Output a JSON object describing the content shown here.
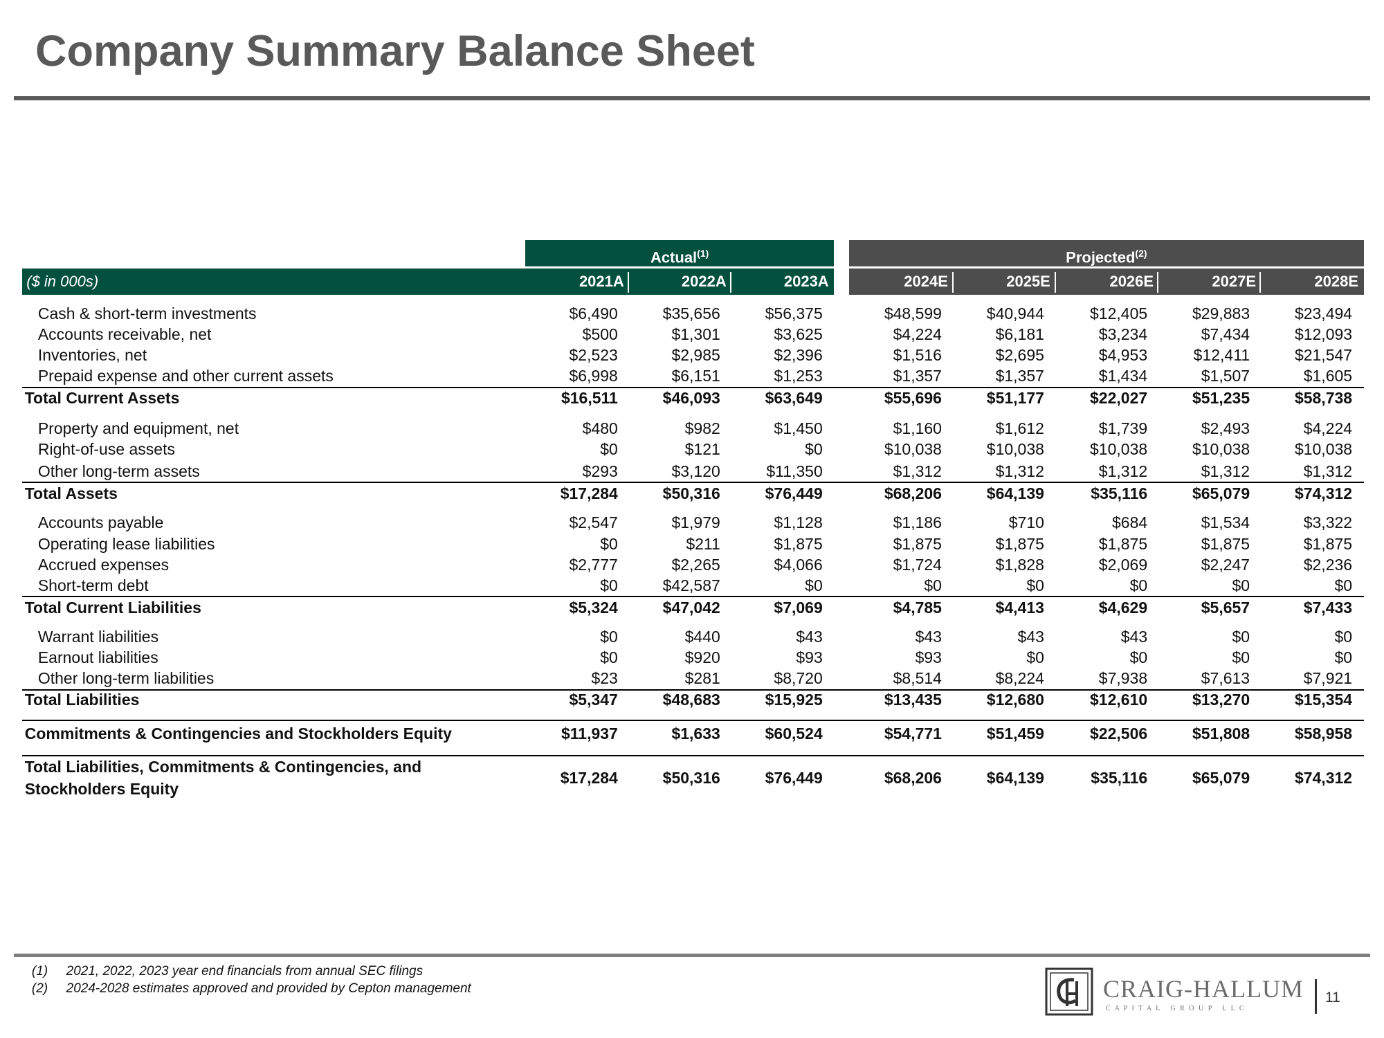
{
  "header": {
    "title": "Company Summary Balance Sheet"
  },
  "table": {
    "groups": [
      {
        "label": "Actual",
        "note": "(1)"
      },
      {
        "label": "Projected",
        "note": "(2)"
      }
    ],
    "unit_label": "($ in 000s)",
    "columns": [
      "2021A",
      "2022A",
      "2023A",
      "2024E",
      "2025E",
      "2026E",
      "2027E",
      "2028E"
    ],
    "rows": [
      {
        "label": "Cash & short-term investments",
        "values": [
          "$6,490",
          "$35,656",
          "$56,375",
          "$48,599",
          "$40,944",
          "$12,405",
          "$29,883",
          "$23,494"
        ],
        "total": false
      },
      {
        "label": "Accounts receivable, net",
        "values": [
          "$500",
          "$1,301",
          "$3,625",
          "$4,224",
          "$6,181",
          "$3,234",
          "$7,434",
          "$12,093"
        ],
        "total": false
      },
      {
        "label": "Inventories, net",
        "values": [
          "$2,523",
          "$2,985",
          "$2,396",
          "$1,516",
          "$2,695",
          "$4,953",
          "$12,411",
          "$21,547"
        ],
        "total": false
      },
      {
        "label": "Prepaid expense and other current assets",
        "values": [
          "$6,998",
          "$6,151",
          "$1,253",
          "$1,357",
          "$1,357",
          "$1,434",
          "$1,507",
          "$1,605"
        ],
        "total": false
      },
      {
        "label": "Total Current Assets",
        "values": [
          "$16,511",
          "$46,093",
          "$63,649",
          "$55,696",
          "$51,177",
          "$22,027",
          "$51,235",
          "$58,738"
        ],
        "total": true
      },
      {
        "label": "Property and equipment, net",
        "values": [
          "$480",
          "$982",
          "$1,450",
          "$1,160",
          "$1,612",
          "$1,739",
          "$2,493",
          "$4,224"
        ],
        "total": false
      },
      {
        "label": "Right-of-use assets",
        "values": [
          "$0",
          "$121",
          "$0",
          "$10,038",
          "$10,038",
          "$10,038",
          "$10,038",
          "$10,038"
        ],
        "total": false
      },
      {
        "label": "Other long-term assets",
        "values": [
          "$293",
          "$3,120",
          "$11,350",
          "$1,312",
          "$1,312",
          "$1,312",
          "$1,312",
          "$1,312"
        ],
        "total": false
      },
      {
        "label": "Total Assets",
        "values": [
          "$17,284",
          "$50,316",
          "$76,449",
          "$68,206",
          "$64,139",
          "$35,116",
          "$65,079",
          "$74,312"
        ],
        "total": true
      },
      {
        "label": "Accounts payable",
        "values": [
          "$2,547",
          "$1,979",
          "$1,128",
          "$1,186",
          "$710",
          "$684",
          "$1,534",
          "$3,322"
        ],
        "total": false
      },
      {
        "label": "Operating lease liabilities",
        "values": [
          "$0",
          "$211",
          "$1,875",
          "$1,875",
          "$1,875",
          "$1,875",
          "$1,875",
          "$1,875"
        ],
        "total": false
      },
      {
        "label": "Accrued expenses",
        "values": [
          "$2,777",
          "$2,265",
          "$4,066",
          "$1,724",
          "$1,828",
          "$2,069",
          "$2,247",
          "$2,236"
        ],
        "total": false
      },
      {
        "label": "Short-term debt",
        "values": [
          "$0",
          "$42,587",
          "$0",
          "$0",
          "$0",
          "$0",
          "$0",
          "$0"
        ],
        "total": false
      },
      {
        "label": "Total Current Liabilities",
        "values": [
          "$5,324",
          "$47,042",
          "$7,069",
          "$4,785",
          "$4,413",
          "$4,629",
          "$5,657",
          "$7,433"
        ],
        "total": true
      },
      {
        "label": "Warrant liabilities",
        "values": [
          "$0",
          "$440",
          "$43",
          "$43",
          "$43",
          "$43",
          "$0",
          "$0"
        ],
        "total": false
      },
      {
        "label": "Earnout liabilities",
        "values": [
          "$0",
          "$920",
          "$93",
          "$93",
          "$0",
          "$0",
          "$0",
          "$0"
        ],
        "total": false
      },
      {
        "label": "Other long-term liabilities",
        "values": [
          "$23",
          "$281",
          "$8,720",
          "$8,514",
          "$8,224",
          "$7,938",
          "$7,613",
          "$7,921"
        ],
        "total": false
      },
      {
        "label": "Total Liabilities",
        "values": [
          "$5,347",
          "$48,683",
          "$15,925",
          "$13,435",
          "$12,680",
          "$12,610",
          "$13,270",
          "$15,354"
        ],
        "total": true
      },
      {
        "label": "Commitments & Contingencies and Stockholders Equity",
        "values": [
          "$11,937",
          "$1,633",
          "$60,524",
          "$54,771",
          "$51,459",
          "$22,506",
          "$51,808",
          "$58,958"
        ],
        "total": true
      },
      {
        "label": "Total Liabilities, Commitments & Contingencies, and Stockholders Equity",
        "values": [
          "$17,284",
          "$50,316",
          "$76,449",
          "$68,206",
          "$64,139",
          "$35,116",
          "$65,079",
          "$74,312"
        ],
        "total": true
      }
    ]
  },
  "footnotes": [
    {
      "marker": "(1)",
      "text": "2021, 2022, 2023 year end financials from annual SEC filings"
    },
    {
      "marker": "(2)",
      "text": "2024-2028 estimates approved and provided by Cepton management"
    }
  ],
  "logo": {
    "name": "CRAIG-HALLUM",
    "tagline": "C A P I T A L   G R O U P   L L C"
  },
  "page_number": "11"
}
